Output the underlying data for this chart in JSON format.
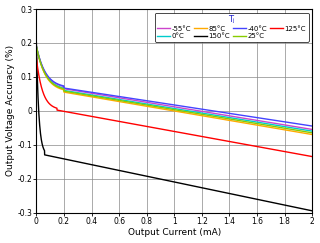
{
  "title": "Tⱼ",
  "xlabel": "Output Current (mA)",
  "ylabel": "Output Voltage Accuracy (%)",
  "xlim": [
    0,
    2.0
  ],
  "ylim": [
    -0.3,
    0.3
  ],
  "xticks": [
    0,
    0.2,
    0.4,
    0.6,
    0.8,
    1.0,
    1.2,
    1.4,
    1.6,
    1.8,
    2.0
  ],
  "yticks": [
    -0.3,
    -0.2,
    -0.1,
    0.0,
    0.1,
    0.2,
    0.3
  ],
  "series": [
    {
      "label": "-55°C",
      "color": "#cc44cc",
      "lw": 1.0
    },
    {
      "label": "0°C",
      "color": "#00cccc",
      "lw": 1.0
    },
    {
      "label": "85°C",
      "color": "#ffaa00",
      "lw": 1.0
    },
    {
      "label": "150°C",
      "color": "#000000",
      "lw": 1.0
    },
    {
      "label": "-40°C",
      "color": "#4444ff",
      "lw": 1.0
    },
    {
      "label": "25°C",
      "color": "#88cc00",
      "lw": 1.0
    },
    {
      "label": "125°C",
      "color": "#ff0000",
      "lw": 1.0
    }
  ],
  "legend_order": [
    0,
    1,
    2,
    3,
    4,
    5,
    6
  ],
  "background": "#ffffff"
}
